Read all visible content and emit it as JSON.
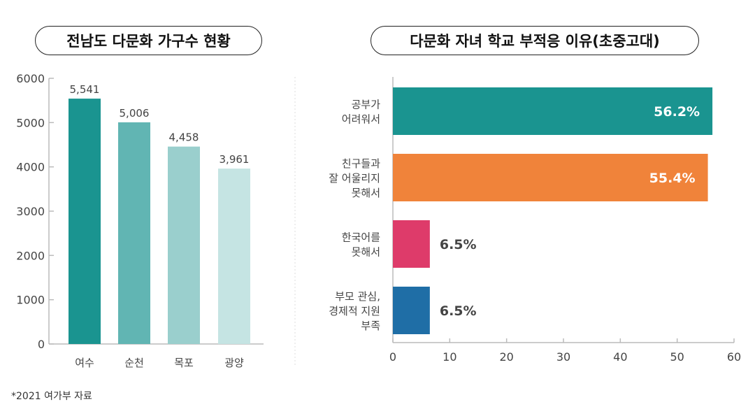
{
  "chart_data": [
    {
      "type": "bar",
      "title": "전남도 다문화 가구수 현황",
      "categories": [
        "여수",
        "순천",
        "목포",
        "광양"
      ],
      "values": [
        5541,
        5006,
        4458,
        3961
      ],
      "data_labels": [
        "5,541",
        "5,006",
        "4,458",
        "3,961"
      ],
      "ylim": [
        0,
        6000
      ],
      "yticks": [
        0,
        1000,
        2000,
        3000,
        4000,
        5000,
        6000
      ],
      "colors": [
        "#1a9490",
        "#61b5b3",
        "#9acfcd",
        "#c5e4e3"
      ],
      "xlabel": "",
      "ylabel": "",
      "grid": false
    },
    {
      "type": "bar",
      "orientation": "horizontal",
      "title": "다문화 자녀 학교 부적응 이유(초중고대)",
      "categories": [
        [
          "공부가",
          "어려워서"
        ],
        [
          "친구들과",
          "잘 어울리지",
          "못해서"
        ],
        [
          "한국어를",
          "못해서"
        ],
        [
          "부모 관심,",
          "경제적 지원",
          "부족"
        ]
      ],
      "values": [
        56.2,
        55.4,
        6.5,
        6.5
      ],
      "data_labels": [
        "56.2%",
        "55.4%",
        "6.5%",
        "6.5%"
      ],
      "xlim": [
        0,
        60
      ],
      "xticks": [
        0,
        10,
        20,
        30,
        40,
        50,
        60
      ],
      "colors": [
        "#1a9490",
        "#f0833a",
        "#de3b6a",
        "#1f6ea6"
      ],
      "xlabel": "",
      "ylabel": "",
      "grid": false
    }
  ],
  "footnote": "*2021 여가부 자료"
}
